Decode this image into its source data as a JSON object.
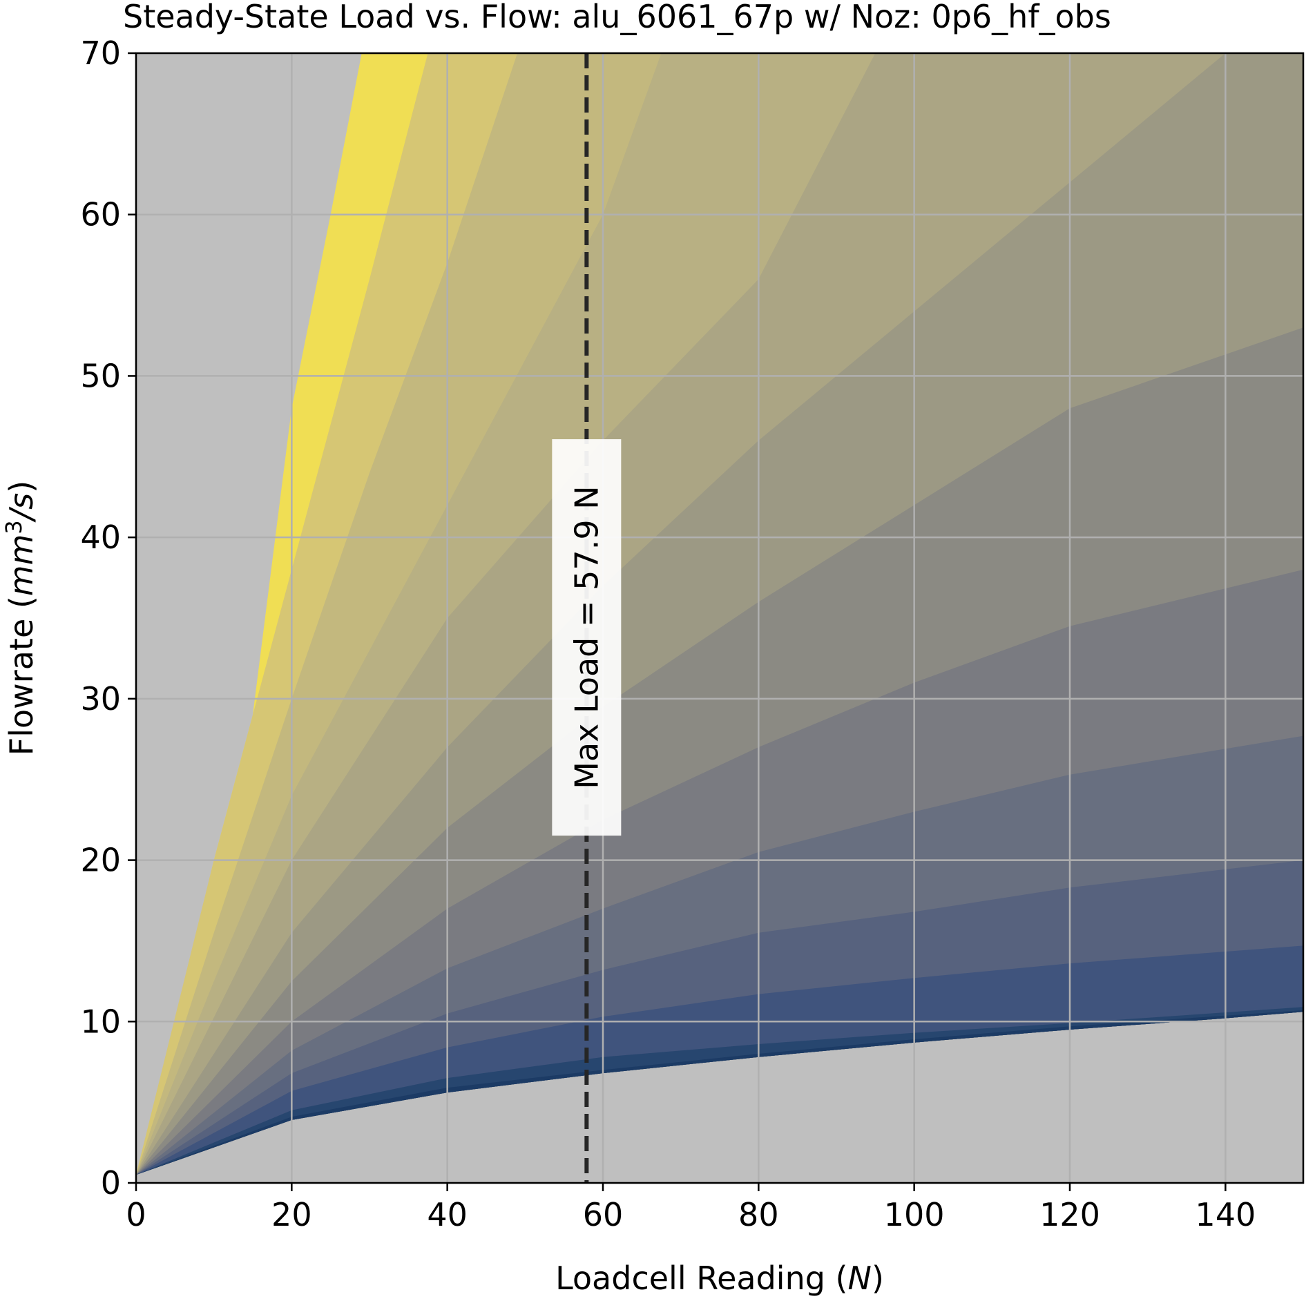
{
  "chart_data": {
    "type": "area",
    "title": "Steady-State Load vs. Flow: alu_6061_67p w/ Noz: 0p6_hf_obs",
    "xlabel": {
      "prefix": "Loadcell Reading (",
      "italic": "N",
      "suffix": ")"
    },
    "ylabel": {
      "prefix": "Flowrate (",
      "italic": "mm",
      "sup": "3",
      "italic2": "/s",
      "suffix": ")"
    },
    "xlim": [
      0,
      150
    ],
    "ylim": [
      0,
      70
    ],
    "xticks": [
      "0",
      "20",
      "40",
      "60",
      "80",
      "100",
      "120",
      "140"
    ],
    "yticks": [
      "0",
      "10",
      "20",
      "30",
      "40",
      "50",
      "60",
      "70"
    ],
    "grid": true,
    "background_color": "#bfbfbf",
    "grid_color": "#b0b0b0",
    "min_boundary": {
      "description_values_x": [
        0,
        20,
        40,
        60,
        80,
        100,
        120,
        140,
        150
      ],
      "y": [
        0.5,
        3.9,
        5.6,
        6.8,
        7.8,
        8.7,
        9.5,
        10.2,
        10.6
      ]
    },
    "bands": [
      {
        "color": "#f0de54",
        "top_x": [
          0,
          5,
          10,
          15,
          20,
          25,
          29
        ],
        "top_y": [
          0.5,
          10,
          20,
          29,
          48,
          60,
          70
        ]
      },
      {
        "color": "#d6c674",
        "top_x": [
          0,
          10,
          20,
          30,
          37.5
        ],
        "top_y": [
          0.5,
          20,
          38,
          56,
          70
        ]
      },
      {
        "color": "#c3b87e",
        "top_x": [
          0,
          10,
          20,
          30,
          40,
          49
        ],
        "top_y": [
          0.5,
          15.5,
          30,
          44,
          57,
          70
        ]
      },
      {
        "color": "#b8b083",
        "top_x": [
          0,
          10,
          20,
          30,
          40,
          50,
          60,
          67.5
        ],
        "top_y": [
          0.5,
          12.5,
          24,
          33,
          42,
          51,
          60,
          70
        ]
      },
      {
        "color": "#aba584",
        "top_x": [
          0,
          20,
          40,
          60,
          80,
          95
        ],
        "top_y": [
          0.5,
          20,
          35,
          46,
          56,
          70
        ]
      },
      {
        "color": "#9c9984",
        "top_x": [
          0,
          20,
          40,
          60,
          80,
          100,
          120,
          140
        ],
        "top_y": [
          0.5,
          15.5,
          27,
          37,
          46,
          54,
          62,
          70
        ]
      },
      {
        "color": "#8b8a83",
        "top_x": [
          0,
          20,
          40,
          60,
          80,
          100,
          120,
          150
        ],
        "top_y": [
          0.5,
          12.5,
          22,
          29.5,
          36,
          42,
          48,
          53
        ]
      },
      {
        "color": "#7a7b81",
        "top_x": [
          0,
          20,
          40,
          60,
          80,
          100,
          120,
          150
        ],
        "top_y": [
          0.5,
          10,
          17,
          22.5,
          27,
          31,
          34.5,
          38
        ]
      },
      {
        "color": "#686f80",
        "top_x": [
          0,
          20,
          40,
          60,
          80,
          100,
          120,
          150
        ],
        "top_y": [
          0.5,
          8.2,
          13.3,
          17,
          20.5,
          23,
          25.3,
          27.7
        ]
      },
      {
        "color": "#57627e",
        "top_x": [
          0,
          20,
          40,
          60,
          80,
          100,
          120,
          150
        ],
        "top_y": [
          0.5,
          6.8,
          10.5,
          13.2,
          15.5,
          16.8,
          18.3,
          20
        ]
      },
      {
        "color": "#40547d",
        "top_x": [
          0,
          20,
          40,
          60,
          80,
          100,
          120,
          150
        ],
        "top_y": [
          0.5,
          5.7,
          8.4,
          10.3,
          11.7,
          12.7,
          13.6,
          14.7
        ]
      },
      {
        "color": "#27466f",
        "top_x": [
          0,
          20,
          40,
          60,
          80,
          100,
          120,
          150
        ],
        "top_y": [
          0.5,
          4.5,
          6.5,
          7.8,
          8.6,
          9.3,
          9.9,
          10.9
        ]
      },
      {
        "color": "#1c3b65",
        "top_x": [
          0,
          20,
          40,
          60,
          80,
          100,
          120,
          150
        ],
        "top_y": [
          0.5,
          4.1,
          5.9,
          7.0,
          8.0,
          8.9,
          9.7,
          10.7
        ]
      }
    ],
    "max_load": {
      "x": 57.9,
      "label": "Max Load = 57.9 N",
      "line_color": "#262626",
      "line_style": "dashed"
    }
  }
}
